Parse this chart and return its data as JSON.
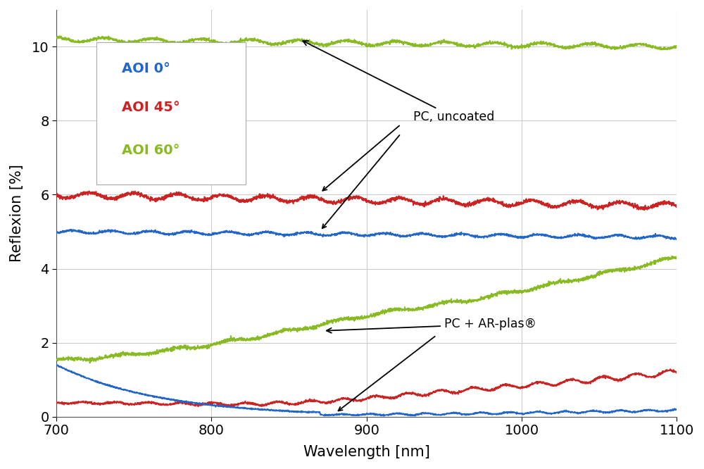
{
  "x_min": 700,
  "x_max": 1100,
  "y_min": 0,
  "y_max": 11,
  "xlabel": "Wavelength [nm]",
  "ylabel": "Reflexion [%]",
  "xticks": [
    700,
    800,
    900,
    1000,
    1100
  ],
  "yticks": [
    0,
    2,
    4,
    6,
    8,
    10
  ],
  "colors": {
    "blue": "#2266CC",
    "red": "#CC2222",
    "green": "#88BB22"
  },
  "legend_labels": [
    "AOI 0°",
    "AOI 45°",
    "AOI 60°"
  ],
  "annotation1": "PC, uncoated",
  "annotation2": "PC + AR-plas®",
  "plot_bg": "#ffffff",
  "fig_bg": "#ffffff",
  "grid_color": "#cccccc",
  "figsize": [
    10.0,
    6.66
  ],
  "dpi": 100
}
